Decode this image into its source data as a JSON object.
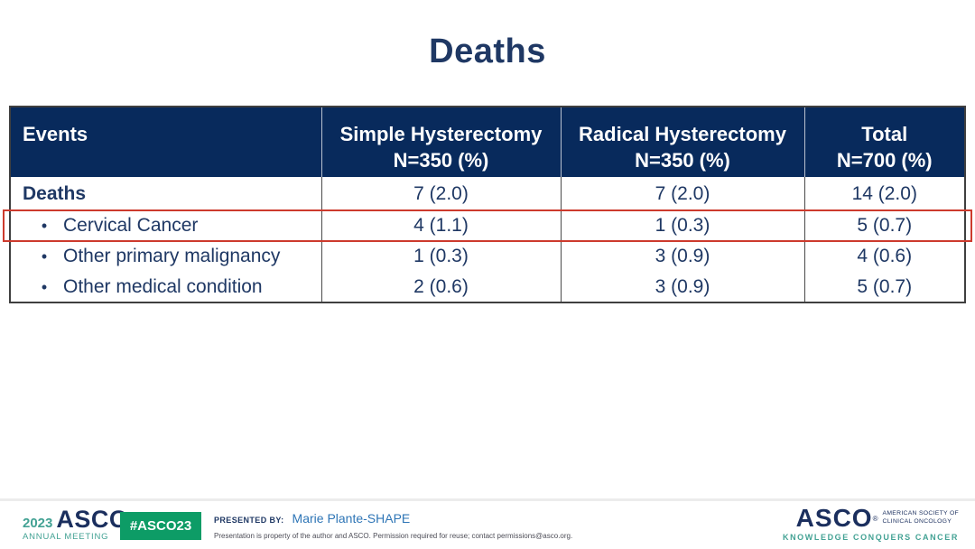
{
  "slide": {
    "title": "Deaths"
  },
  "table": {
    "columns": [
      {
        "line1": "Events",
        "line2": ""
      },
      {
        "line1": "Simple Hysterectomy",
        "line2": "N=350 (%)"
      },
      {
        "line1": "Radical Hysterectomy",
        "line2": "N=350 (%)"
      },
      {
        "line1": "Total",
        "line2": "N=700 (%)"
      }
    ],
    "rows": [
      {
        "label": "Deaths",
        "bullet": "",
        "values": [
          "7 (2.0)",
          "7 (2.0)",
          "14 (2.0)"
        ]
      },
      {
        "label": "Cervical Cancer",
        "bullet": "•",
        "values": [
          "4 (1.1)",
          "1 (0.3)",
          "5 (0.7)"
        ]
      },
      {
        "label": "Other primary malignancy",
        "bullet": "•",
        "values": [
          "1 (0.3)",
          "3 (0.9)",
          "4 (0.6)"
        ]
      },
      {
        "label": "Other medical condition",
        "bullet": "•",
        "values": [
          "2 (0.6)",
          "3 (0.9)",
          "5 (0.7)"
        ]
      }
    ],
    "highlighted_row": "Cervical Cancer"
  },
  "footer": {
    "meeting_logo": {
      "year": "2023",
      "brand": "ASCO",
      "registered_mark": "®",
      "subtitle": "ANNUAL MEETING"
    },
    "hashtag_badge": "#ASCO23",
    "presented_by_label": "PRESENTED BY:",
    "presenter": "Marie Plante-SHAPE",
    "disclaimer": "Presentation is property of the author and ASCO. Permission required for reuse; contact permissions@asco.org.",
    "asco_logo": {
      "brand": "ASCO",
      "registered_mark": "®",
      "society_line1": "AMERICAN SOCIETY OF",
      "society_line2": "CLINICAL ONCOLOGY",
      "tagline": "KNOWLEDGE CONQUERS CANCER"
    }
  },
  "colors": {
    "header_navy": "#082A5C",
    "text_navy": "#1F3864",
    "highlight_red": "#CD3A2D",
    "teal": "#43A294",
    "badge_green": "#0D9C66",
    "presenter_blue": "#2E75B6"
  }
}
